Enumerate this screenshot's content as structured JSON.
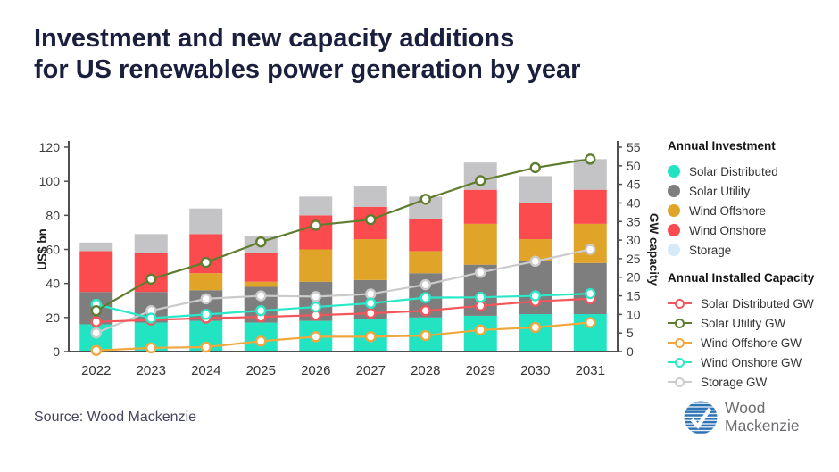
{
  "title": {
    "line1": "Investment and new capacity additions",
    "line2": "for US renewables power generation by year"
  },
  "source": "Source: Wood Mackenzie",
  "logo": {
    "line1": "Wood",
    "line2": "Mackenzie",
    "globe_color": "#2e74b5",
    "text_color": "#6d6e71"
  },
  "chart_data": {
    "type": "bar+line combo (stacked bars, left axis; lines with markers, right axis)",
    "title": "Investment and new capacity additions for US renewables power generation by year",
    "categories": [
      "2022",
      "2023",
      "2024",
      "2025",
      "2026",
      "2027",
      "2028",
      "2029",
      "2030",
      "2031"
    ],
    "left_axis": {
      "label": "US$ bn",
      "min": 0,
      "max": 120,
      "step": 20
    },
    "right_axis": {
      "label": "GW capacity",
      "min": 0,
      "max": 55,
      "step": 5
    },
    "grid": "off",
    "legend": {
      "position": "right",
      "investment_header": "Annual Investment",
      "capacity_header": "Annual Installed Capacity"
    },
    "bar_series": [
      {
        "name": "Solar Distributed",
        "color": "#22e4c3",
        "values": [
          16,
          17,
          18,
          17,
          18,
          19,
          20,
          21,
          22,
          22
        ]
      },
      {
        "name": "Solar Utility",
        "color": "#7e7e7e",
        "values": [
          19,
          18,
          18,
          21,
          23,
          23,
          26,
          30,
          31,
          30
        ]
      },
      {
        "name": "Wind Offshore",
        "color": "#e0a428",
        "values": [
          0,
          0,
          10,
          3,
          19,
          24,
          13,
          24,
          13,
          23
        ]
      },
      {
        "name": "Wind Onshore",
        "color": "#fb4b4f",
        "values": [
          24,
          23,
          23,
          17,
          20,
          19,
          19,
          20,
          21,
          20
        ]
      },
      {
        "name": "Storage",
        "color": "#c4c4c6",
        "swatch": "#d6e9f8",
        "values": [
          5,
          11,
          15,
          10,
          11,
          12,
          13,
          16,
          16,
          18
        ]
      }
    ],
    "line_series": [
      {
        "name": "Solar Distributed GW",
        "color": "#f4565b",
        "z": 3,
        "values": [
          8,
          8.5,
          9,
          9.3,
          9.8,
          10.3,
          11,
          12.3,
          13.5,
          14.2
        ]
      },
      {
        "name": "Solar Utility GW",
        "color": "#5f7d2e",
        "z": 5,
        "values": [
          11,
          19.5,
          24,
          29.5,
          34,
          35.5,
          41,
          46,
          49.5,
          51.8
        ]
      },
      {
        "name": "Wind Offshore GW",
        "color": "#f2a73d",
        "z": 2,
        "values": [
          0.3,
          1,
          1.2,
          2.8,
          4,
          4,
          4.3,
          5.8,
          6.5,
          7.8
        ]
      },
      {
        "name": "Wind Onshore GW",
        "color": "#2ae8c8",
        "z": 4,
        "values": [
          12.7,
          9,
          10,
          11,
          12,
          13,
          14.5,
          14.6,
          15,
          15.6
        ]
      },
      {
        "name": "Storage GW",
        "color": "#cbcbcb",
        "z": 1,
        "values": [
          5,
          11,
          14.2,
          15,
          14.8,
          15.5,
          18,
          21.3,
          24.3,
          27.5
        ]
      }
    ]
  }
}
